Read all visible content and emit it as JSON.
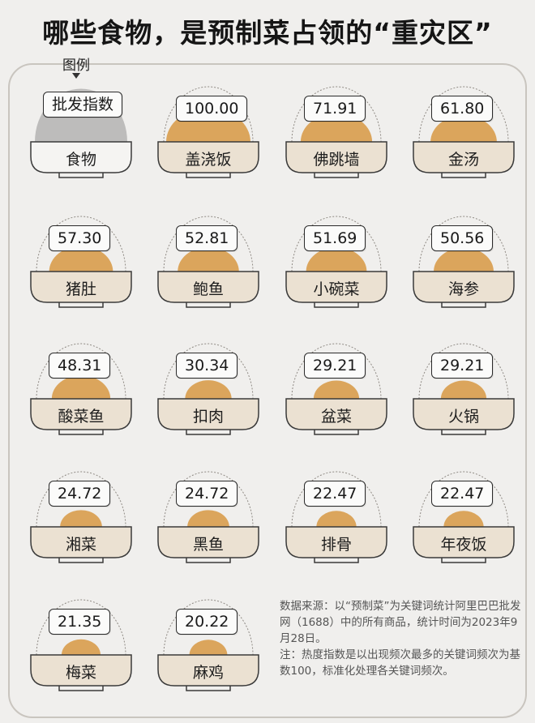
{
  "title": "哪些食物，是预制菜占领的“重灾区”",
  "legend": {
    "label": "图例",
    "index_label": "批发指数",
    "food_label": "食物"
  },
  "colors": {
    "background": "#f0efed",
    "fill": "#dba55c",
    "bowl": "#ebe1d2",
    "legend_fill": "#bdbcbb",
    "outline": "#3a3a3a"
  },
  "chart_data": {
    "type": "bar",
    "title": "哪些食物，是预制菜占领的“重灾区”",
    "value_label": "批发指数",
    "category_label": "食物",
    "categories": [
      "盖浇饭",
      "佛跳墙",
      "金汤",
      "猪肚",
      "鲍鱼",
      "小碗菜",
      "海参",
      "酸菜鱼",
      "扣肉",
      "盆菜",
      "火锅",
      "湘菜",
      "黑鱼",
      "排骨",
      "年夜饭",
      "梅菜",
      "麻鸡"
    ],
    "values": [
      100.0,
      71.91,
      61.8,
      57.3,
      52.81,
      51.69,
      50.56,
      48.31,
      30.34,
      29.21,
      29.21,
      24.72,
      24.72,
      22.47,
      22.47,
      21.35,
      20.22
    ],
    "value_labels": [
      "100.00",
      "71.91",
      "61.80",
      "57.30",
      "52.81",
      "51.69",
      "50.56",
      "48.31",
      "30.34",
      "29.21",
      "29.21",
      "24.72",
      "24.72",
      "22.47",
      "22.47",
      "21.35",
      "20.22"
    ],
    "max": 100
  },
  "notes": {
    "source": "数据来源：以“预制菜”为关键词统计阿里巴巴批发网（1688）中的所有商品，统计时间为2023年9月28日。",
    "note": "注：热度指数是以出现频次最多的关键词频次为基数100，标准化处理各关键词频次。"
  }
}
